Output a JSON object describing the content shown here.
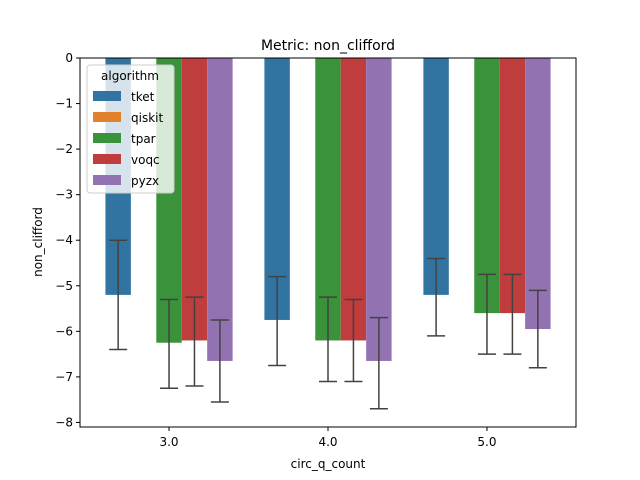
{
  "chart_data": {
    "type": "bar",
    "title": "Metric: non_clifford",
    "xlabel": "circ_q_count",
    "ylabel": "non_clifford",
    "categories": [
      "3.0",
      "4.0",
      "5.0"
    ],
    "ylim": [
      -8.1,
      0
    ],
    "yticks": [
      0,
      -1,
      -2,
      -3,
      -4,
      -5,
      -6,
      -7,
      -8
    ],
    "ytick_labels": [
      "0",
      "−1",
      "−2",
      "−3",
      "−4",
      "−5",
      "−6",
      "−7",
      "−8"
    ],
    "grid": false,
    "legend": {
      "title": "algorithm",
      "placement": "upper-left"
    },
    "series": [
      {
        "name": "tket",
        "color": "#3274a1",
        "values": [
          -5.2,
          -5.75,
          -5.2
        ],
        "err_low": [
          -6.4,
          -6.75,
          -6.1
        ],
        "err_high": [
          -4.0,
          -4.8,
          -4.4
        ]
      },
      {
        "name": "qiskit",
        "color": "#e1812c",
        "values": [
          0,
          0,
          0
        ],
        "err_low": [
          0,
          0,
          0
        ],
        "err_high": [
          0,
          0,
          0
        ]
      },
      {
        "name": "tpar",
        "color": "#3a923a",
        "values": [
          -6.25,
          -6.2,
          -5.6
        ],
        "err_low": [
          -7.25,
          -7.1,
          -6.5
        ],
        "err_high": [
          -5.3,
          -5.25,
          -4.75
        ]
      },
      {
        "name": "voqc",
        "color": "#c03d3e",
        "values": [
          -6.2,
          -6.2,
          -5.6
        ],
        "err_low": [
          -7.2,
          -7.1,
          -6.5
        ],
        "err_high": [
          -5.25,
          -5.3,
          -4.75
        ]
      },
      {
        "name": "pyzx",
        "color": "#9372b2",
        "values": [
          -6.65,
          -6.65,
          -5.95
        ],
        "err_low": [
          -7.55,
          -7.7,
          -6.8
        ],
        "err_high": [
          -5.75,
          -5.7,
          -5.1
        ]
      }
    ]
  }
}
